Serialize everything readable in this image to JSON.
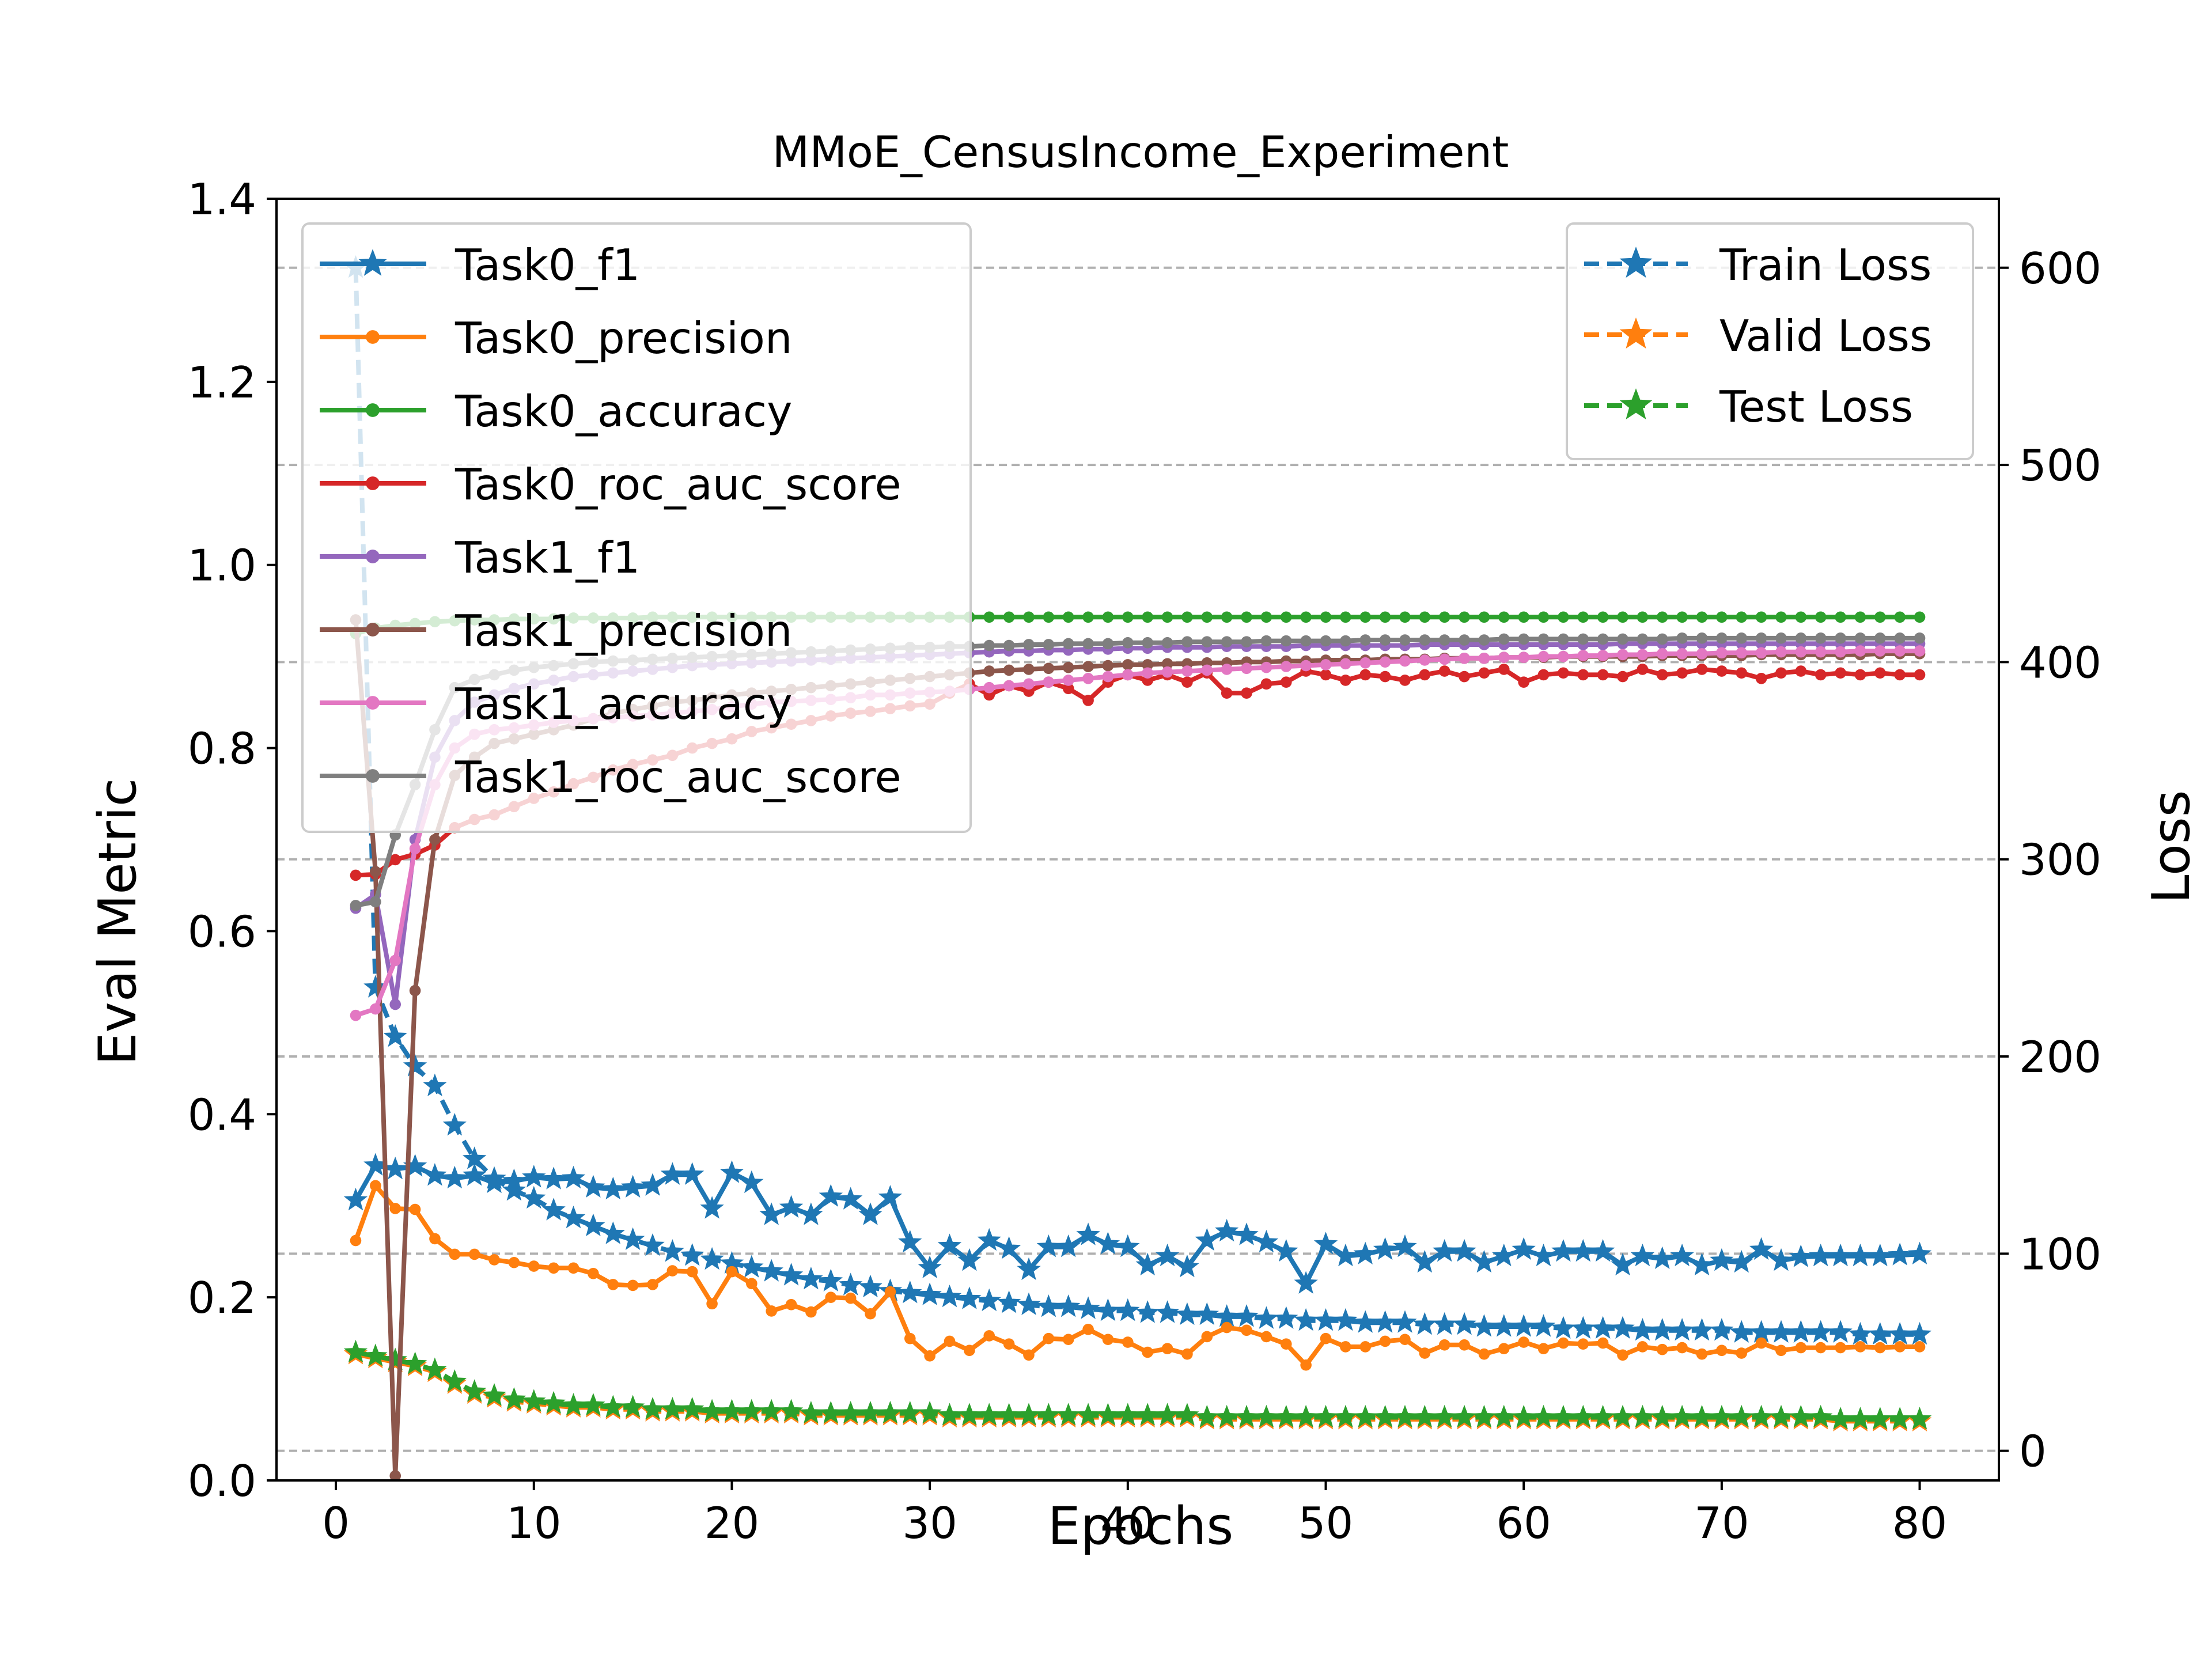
{
  "chart_data": {
    "type": "line",
    "title": "MMoE_CensusIncome_Experiment",
    "xlabel": "Epochs",
    "ylabel_left": "Eval Metric",
    "ylabel_right": "Loss",
    "xlim": [
      -3,
      84
    ],
    "ylim_left": [
      0.0,
      1.4
    ],
    "ylim_right": [
      -15,
      635
    ],
    "xticks": [
      "0",
      "10",
      "20",
      "30",
      "40",
      "50",
      "60",
      "70",
      "80"
    ],
    "yticks_left": [
      "0.0",
      "0.2",
      "0.4",
      "0.6",
      "0.8",
      "1.0",
      "1.2",
      "1.4"
    ],
    "yticks_right": [
      "0",
      "100",
      "200",
      "300",
      "400",
      "500",
      "600"
    ],
    "grid": "horizontal dashed on right axis",
    "legend_left_position": "upper-left",
    "legend_right_position": "upper-right",
    "x": [
      1,
      2,
      3,
      4,
      5,
      6,
      7,
      8,
      9,
      10,
      11,
      12,
      13,
      14,
      15,
      16,
      17,
      18,
      19,
      20,
      21,
      22,
      23,
      24,
      25,
      26,
      27,
      28,
      29,
      30,
      31,
      32,
      33,
      34,
      35,
      36,
      37,
      38,
      39,
      40,
      41,
      42,
      43,
      44,
      45,
      46,
      47,
      48,
      49,
      50,
      51,
      52,
      53,
      54,
      55,
      56,
      57,
      58,
      59,
      60,
      61,
      62,
      63,
      64,
      65,
      66,
      67,
      68,
      69,
      70,
      71,
      72,
      73,
      74,
      75,
      76,
      77,
      78,
      79,
      80
    ],
    "metric_series": [
      {
        "name": "Task0_f1",
        "color": "#1f77b4",
        "marker": "star",
        "values": [
          0.306,
          0.344,
          0.34,
          0.343,
          0.333,
          0.33,
          0.333,
          0.325,
          0.327,
          0.331,
          0.329,
          0.33,
          0.32,
          0.318,
          0.32,
          0.322,
          0.334,
          0.334,
          0.297,
          0.336,
          0.325,
          0.29,
          0.298,
          0.29,
          0.31,
          0.307,
          0.29,
          0.309,
          0.26,
          0.232,
          0.256,
          0.24,
          0.262,
          0.253,
          0.23,
          0.255,
          0.255,
          0.268,
          0.258,
          0.255,
          0.235,
          0.245,
          0.233,
          0.262,
          0.272,
          0.268,
          0.26,
          0.25,
          0.215,
          0.258,
          0.245,
          0.247,
          0.252,
          0.255,
          0.238,
          0.25,
          0.25,
          0.238,
          0.245,
          0.252,
          0.245,
          0.25,
          0.25,
          0.25,
          0.235,
          0.245,
          0.242,
          0.245,
          0.235,
          0.24,
          0.238,
          0.252,
          0.24,
          0.244,
          0.245,
          0.245,
          0.245,
          0.245,
          0.246,
          0.247
        ]
      },
      {
        "name": "Task0_precision",
        "color": "#ff7f0e",
        "marker": "dot",
        "values": [
          0.262,
          0.322,
          0.297,
          0.296,
          0.264,
          0.247,
          0.247,
          0.241,
          0.238,
          0.234,
          0.232,
          0.232,
          0.226,
          0.214,
          0.213,
          0.214,
          0.229,
          0.228,
          0.193,
          0.228,
          0.215,
          0.185,
          0.192,
          0.184,
          0.2,
          0.199,
          0.182,
          0.206,
          0.155,
          0.136,
          0.152,
          0.142,
          0.158,
          0.149,
          0.137,
          0.155,
          0.154,
          0.165,
          0.154,
          0.151,
          0.14,
          0.144,
          0.138,
          0.157,
          0.167,
          0.164,
          0.157,
          0.149,
          0.126,
          0.155,
          0.146,
          0.146,
          0.152,
          0.154,
          0.139,
          0.148,
          0.148,
          0.138,
          0.144,
          0.151,
          0.144,
          0.15,
          0.149,
          0.15,
          0.137,
          0.146,
          0.143,
          0.145,
          0.138,
          0.142,
          0.139,
          0.15,
          0.142,
          0.145,
          0.145,
          0.145,
          0.146,
          0.145,
          0.146,
          0.146
        ]
      },
      {
        "name": "Task0_accuracy",
        "color": "#2ca02c",
        "marker": "dot",
        "values": [
          0.925,
          0.931,
          0.934,
          0.936,
          0.938,
          0.939,
          0.94,
          0.94,
          0.941,
          0.941,
          0.941,
          0.942,
          0.942,
          0.942,
          0.942,
          0.943,
          0.943,
          0.943,
          0.943,
          0.943,
          0.943,
          0.943,
          0.943,
          0.943,
          0.943,
          0.943,
          0.943,
          0.943,
          0.943,
          0.943,
          0.943,
          0.943,
          0.943,
          0.943,
          0.943,
          0.943,
          0.943,
          0.943,
          0.943,
          0.943,
          0.943,
          0.943,
          0.943,
          0.943,
          0.943,
          0.943,
          0.943,
          0.943,
          0.943,
          0.943,
          0.943,
          0.943,
          0.943,
          0.943,
          0.943,
          0.943,
          0.943,
          0.943,
          0.943,
          0.943,
          0.943,
          0.943,
          0.943,
          0.943,
          0.943,
          0.943,
          0.943,
          0.943,
          0.943,
          0.943,
          0.943,
          0.943,
          0.943,
          0.943,
          0.943,
          0.943,
          0.943,
          0.943,
          0.943,
          0.943
        ]
      },
      {
        "name": "Task0_roc_auc_score",
        "color": "#d62728",
        "marker": "dot",
        "values": [
          0.661,
          0.662,
          0.678,
          0.684,
          0.694,
          0.713,
          0.722,
          0.727,
          0.736,
          0.745,
          0.752,
          0.761,
          0.768,
          0.776,
          0.782,
          0.787,
          0.792,
          0.8,
          0.805,
          0.81,
          0.818,
          0.822,
          0.826,
          0.83,
          0.835,
          0.838,
          0.84,
          0.843,
          0.846,
          0.848,
          0.86,
          0.87,
          0.858,
          0.868,
          0.862,
          0.872,
          0.865,
          0.852,
          0.872,
          0.88,
          0.874,
          0.88,
          0.872,
          0.882,
          0.86,
          0.86,
          0.87,
          0.872,
          0.884,
          0.88,
          0.874,
          0.88,
          0.878,
          0.874,
          0.88,
          0.884,
          0.878,
          0.882,
          0.886,
          0.872,
          0.88,
          0.882,
          0.88,
          0.88,
          0.878,
          0.886,
          0.88,
          0.882,
          0.886,
          0.884,
          0.882,
          0.876,
          0.882,
          0.884,
          0.88,
          0.882,
          0.88,
          0.882,
          0.88,
          0.88
        ]
      },
      {
        "name": "Task1_f1",
        "color": "#9467bd",
        "marker": "dot",
        "values": [
          0.625,
          0.64,
          0.52,
          0.7,
          0.79,
          0.83,
          0.85,
          0.858,
          0.865,
          0.87,
          0.874,
          0.878,
          0.88,
          0.882,
          0.884,
          0.886,
          0.888,
          0.89,
          0.891,
          0.892,
          0.893,
          0.894,
          0.895,
          0.896,
          0.897,
          0.898,
          0.899,
          0.9,
          0.901,
          0.902,
          0.903,
          0.904,
          0.905,
          0.906,
          0.906,
          0.907,
          0.907,
          0.908,
          0.908,
          0.909,
          0.909,
          0.91,
          0.91,
          0.91,
          0.911,
          0.911,
          0.911,
          0.911,
          0.912,
          0.912,
          0.912,
          0.912,
          0.912,
          0.912,
          0.913,
          0.913,
          0.913,
          0.913,
          0.913,
          0.913,
          0.913,
          0.913,
          0.913,
          0.913,
          0.914,
          0.914,
          0.914,
          0.914,
          0.914,
          0.914,
          0.914,
          0.914,
          0.914,
          0.914,
          0.914,
          0.914,
          0.914,
          0.914,
          0.914,
          0.914
        ]
      },
      {
        "name": "Task1_precision",
        "color": "#8c564b",
        "marker": "dot",
        "values": [
          0.94,
          0.665,
          0.005,
          0.535,
          0.7,
          0.77,
          0.79,
          0.805,
          0.81,
          0.815,
          0.82,
          0.825,
          0.832,
          0.838,
          0.842,
          0.846,
          0.85,
          0.852,
          0.855,
          0.858,
          0.86,
          0.862,
          0.864,
          0.866,
          0.868,
          0.87,
          0.872,
          0.874,
          0.876,
          0.878,
          0.88,
          0.882,
          0.884,
          0.885,
          0.886,
          0.887,
          0.888,
          0.889,
          0.89,
          0.891,
          0.891,
          0.892,
          0.892,
          0.893,
          0.893,
          0.894,
          0.894,
          0.895,
          0.895,
          0.896,
          0.896,
          0.896,
          0.897,
          0.897,
          0.897,
          0.898,
          0.898,
          0.898,
          0.899,
          0.899,
          0.899,
          0.9,
          0.9,
          0.9,
          0.9,
          0.9,
          0.901,
          0.901,
          0.901,
          0.901,
          0.901,
          0.902,
          0.902,
          0.902,
          0.902,
          0.902,
          0.902,
          0.903,
          0.903,
          0.903
        ]
      },
      {
        "name": "Task1_accuracy",
        "color": "#e377c2",
        "marker": "dot",
        "values": [
          0.508,
          0.515,
          0.568,
          0.69,
          0.76,
          0.8,
          0.815,
          0.82,
          0.822,
          0.825,
          0.828,
          0.83,
          0.832,
          0.833,
          0.835,
          0.836,
          0.838,
          0.84,
          0.842,
          0.845,
          0.848,
          0.85,
          0.851,
          0.852,
          0.853,
          0.855,
          0.858,
          0.858,
          0.86,
          0.861,
          0.862,
          0.864,
          0.866,
          0.868,
          0.87,
          0.872,
          0.874,
          0.876,
          0.878,
          0.88,
          0.882,
          0.883,
          0.884,
          0.885,
          0.886,
          0.887,
          0.888,
          0.889,
          0.89,
          0.891,
          0.892,
          0.893,
          0.894,
          0.895,
          0.896,
          0.897,
          0.898,
          0.898,
          0.899,
          0.899,
          0.9,
          0.9,
          0.901,
          0.901,
          0.902,
          0.902,
          0.903,
          0.903,
          0.903,
          0.904,
          0.904,
          0.904,
          0.905,
          0.905,
          0.905,
          0.905,
          0.906,
          0.906,
          0.906,
          0.906
        ]
      },
      {
        "name": "Task1_roc_auc_score",
        "color": "#7f7f7f",
        "marker": "dot",
        "values": [
          0.628,
          0.632,
          0.705,
          0.76,
          0.82,
          0.866,
          0.875,
          0.88,
          0.885,
          0.888,
          0.89,
          0.892,
          0.894,
          0.895,
          0.896,
          0.897,
          0.898,
          0.899,
          0.9,
          0.901,
          0.902,
          0.903,
          0.904,
          0.905,
          0.906,
          0.907,
          0.908,
          0.909,
          0.91,
          0.91,
          0.911,
          0.911,
          0.912,
          0.912,
          0.913,
          0.913,
          0.914,
          0.914,
          0.914,
          0.915,
          0.915,
          0.915,
          0.916,
          0.916,
          0.916,
          0.916,
          0.917,
          0.917,
          0.917,
          0.917,
          0.917,
          0.918,
          0.918,
          0.918,
          0.918,
          0.918,
          0.918,
          0.918,
          0.919,
          0.919,
          0.919,
          0.919,
          0.919,
          0.919,
          0.919,
          0.919,
          0.919,
          0.92,
          0.92,
          0.92,
          0.92,
          0.92,
          0.92,
          0.92,
          0.92,
          0.92,
          0.92,
          0.92,
          0.92,
          0.92
        ]
      }
    ],
    "loss_series": [
      {
        "name": "Train Loss",
        "color": "#1f77b4",
        "marker": "star",
        "values": [
          600,
          235,
          210,
          195,
          185,
          165,
          148,
          138,
          132,
          128,
          122,
          118,
          114,
          110,
          107,
          104,
          101,
          99,
          97,
          95,
          93,
          91,
          89,
          87,
          86,
          84,
          83,
          81,
          80,
          79,
          78,
          77,
          76,
          75,
          74,
          73,
          73,
          72,
          71,
          71,
          70,
          70,
          69,
          69,
          68,
          68,
          67,
          67,
          66,
          66,
          66,
          65,
          65,
          65,
          64,
          64,
          64,
          63,
          63,
          63,
          63,
          62,
          62,
          62,
          62,
          61,
          61,
          61,
          61,
          61,
          60,
          60,
          60,
          60,
          60,
          60,
          59,
          59,
          59,
          59
        ]
      },
      {
        "name": "Valid Loss",
        "color": "#ff7f0e",
        "marker": "star",
        "values": [
          49,
          47,
          45,
          43,
          40,
          34,
          29,
          27,
          25,
          24,
          23,
          22,
          22,
          21,
          21,
          20,
          20,
          20,
          19,
          19,
          19,
          19,
          19,
          18,
          18,
          18,
          18,
          18,
          18,
          18,
          17,
          17,
          17,
          17,
          17,
          17,
          17,
          17,
          17,
          17,
          17,
          17,
          17,
          16,
          16,
          16,
          16,
          16,
          16,
          16,
          16,
          16,
          16,
          16,
          16,
          16,
          16,
          16,
          16,
          16,
          16,
          16,
          16,
          16,
          16,
          16,
          16,
          16,
          16,
          16,
          16,
          16,
          16,
          16,
          16,
          15,
          15,
          15,
          15,
          15
        ]
      },
      {
        "name": "Test Loss",
        "color": "#2ca02c",
        "marker": "star",
        "values": [
          50,
          48,
          46,
          44,
          41,
          35,
          30,
          28,
          26,
          25,
          24,
          23,
          23,
          22,
          22,
          21,
          21,
          21,
          20,
          20,
          20,
          20,
          20,
          19,
          19,
          19,
          19,
          19,
          19,
          19,
          18,
          18,
          18,
          18,
          18,
          18,
          18,
          18,
          18,
          18,
          18,
          18,
          18,
          17,
          17,
          17,
          17,
          17,
          17,
          17,
          17,
          17,
          17,
          17,
          17,
          17,
          17,
          17,
          17,
          17,
          17,
          17,
          17,
          17,
          17,
          17,
          17,
          17,
          17,
          17,
          17,
          17,
          17,
          17,
          17,
          16,
          16,
          16,
          16,
          16
        ]
      }
    ]
  }
}
